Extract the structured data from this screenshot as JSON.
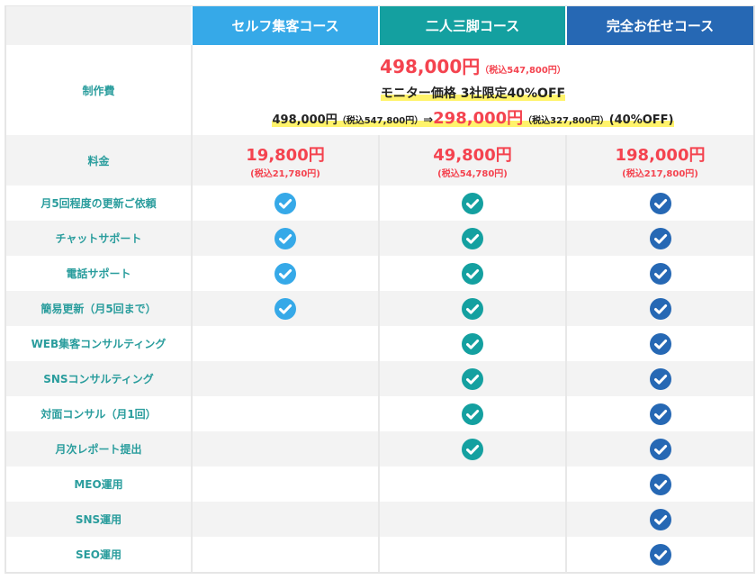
{
  "colors": {
    "self": "#36a9e8",
    "ninin": "#14a0a0",
    "kanzen": "#2668b4"
  },
  "courses": [
    "セルフ集客コース",
    "二人三脚コース",
    "完全お任せコース"
  ],
  "production": {
    "label": "制作費",
    "price": "498,000円",
    "price_tax": "（税込547,800円）",
    "monitor": "モニター価格 3社限定40%OFF",
    "old": "498,000円",
    "old_tax": "（税込547,800円）",
    "arrow": "⇒",
    "new": "298,000円",
    "new_tax": "（税込327,800円）",
    "off": "(40%OFF)"
  },
  "fee": {
    "label": "料金",
    "prices": [
      {
        "price": "19,800円",
        "tax": "(税込21,780円)"
      },
      {
        "price": "49,800円",
        "tax": "(税込54,780円)"
      },
      {
        "price": "198,000円",
        "tax": "(税込217,800円)"
      }
    ]
  },
  "features": [
    {
      "label": "月5回程度の更新ご依頼",
      "checks": [
        true,
        true,
        true
      ]
    },
    {
      "label": "チャットサポート",
      "checks": [
        true,
        true,
        true
      ]
    },
    {
      "label": "電話サポート",
      "checks": [
        true,
        true,
        true
      ]
    },
    {
      "label": "簡易更新（月5回まで）",
      "checks": [
        true,
        true,
        true
      ]
    },
    {
      "label": "WEB集客コンサルティング",
      "checks": [
        false,
        true,
        true
      ]
    },
    {
      "label": "SNSコンサルティング",
      "checks": [
        false,
        true,
        true
      ]
    },
    {
      "label": "対面コンサル（月1回）",
      "checks": [
        false,
        true,
        true
      ]
    },
    {
      "label": "月次レポート提出",
      "checks": [
        false,
        true,
        true
      ]
    },
    {
      "label": "MEO運用",
      "checks": [
        false,
        false,
        true
      ]
    },
    {
      "label": "SNS運用",
      "checks": [
        false,
        false,
        true
      ]
    },
    {
      "label": "SEO運用",
      "checks": [
        false,
        false,
        true
      ]
    }
  ]
}
